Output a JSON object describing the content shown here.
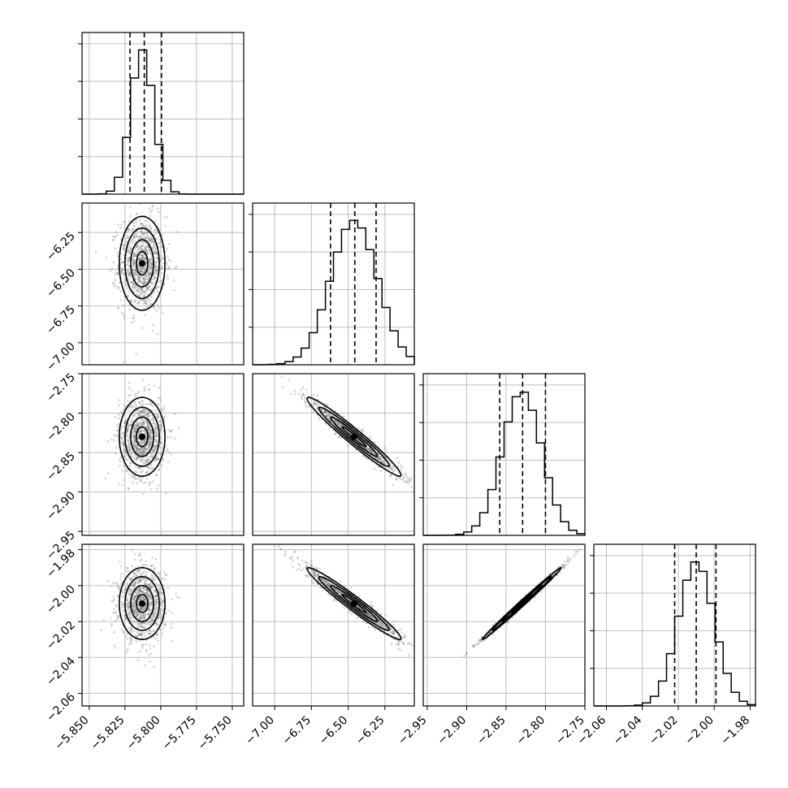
{
  "chart_data": {
    "type": "corner",
    "parameters": [
      {
        "range": [
          -5.855,
          -5.742
        ],
        "ticks": [
          -5.85,
          -5.825,
          -5.8,
          -5.775,
          -5.75
        ],
        "tick_labels": [
          "−5.850",
          "−5.825",
          "−5.800",
          "−5.775",
          "−5.750"
        ],
        "mean": -5.813,
        "std": 0.008,
        "quantiles": [
          -5.8215,
          -5.8115,
          -5.7995
        ]
      },
      {
        "range": [
          -7.15,
          -6.05
        ],
        "ticks": [
          -7.0,
          -6.75,
          -6.5,
          -6.25
        ],
        "tick_labels": [
          "−7.00",
          "−6.75",
          "−6.50",
          "−6.25"
        ],
        "mean": -6.46,
        "std": 0.16,
        "quantiles": [
          -6.62,
          -6.455,
          -6.31
        ]
      },
      {
        "range": [
          -2.955,
          -2.75
        ],
        "ticks": [
          -2.95,
          -2.9,
          -2.85,
          -2.8,
          -2.75
        ],
        "tick_labels": [
          "−2.95",
          "−2.90",
          "−2.85",
          "−2.80",
          "−2.75"
        ],
        "mean": -2.83,
        "std": 0.025,
        "quantiles": [
          -2.858,
          -2.829,
          -2.8
        ]
      },
      {
        "range": [
          -2.067,
          -1.977
        ],
        "ticks": [
          -2.06,
          -2.04,
          -2.02,
          -2.0,
          -1.98
        ],
        "tick_labels": [
          "−2.06",
          "−2.04",
          "−2.02",
          "−2.00",
          "−1.98"
        ],
        "mean": -2.01,
        "std": 0.01,
        "quantiles": [
          -2.022,
          -2.01,
          -1.999
        ]
      }
    ],
    "correlations": [
      [
        1.0,
        0.0,
        0.0,
        0.0
      ],
      [
        0.0,
        1.0,
        -0.97,
        -0.97
      ],
      [
        0.0,
        -0.97,
        1.0,
        0.995
      ],
      [
        0.0,
        -0.97,
        0.995,
        1.0
      ]
    ],
    "contour_levels": [
      0.5,
      1.0,
      1.5,
      2.0
    ],
    "grid": true,
    "colors": {
      "points": "#6f6f6f",
      "lines": "#000000",
      "grid": "#bdbdbd"
    }
  }
}
